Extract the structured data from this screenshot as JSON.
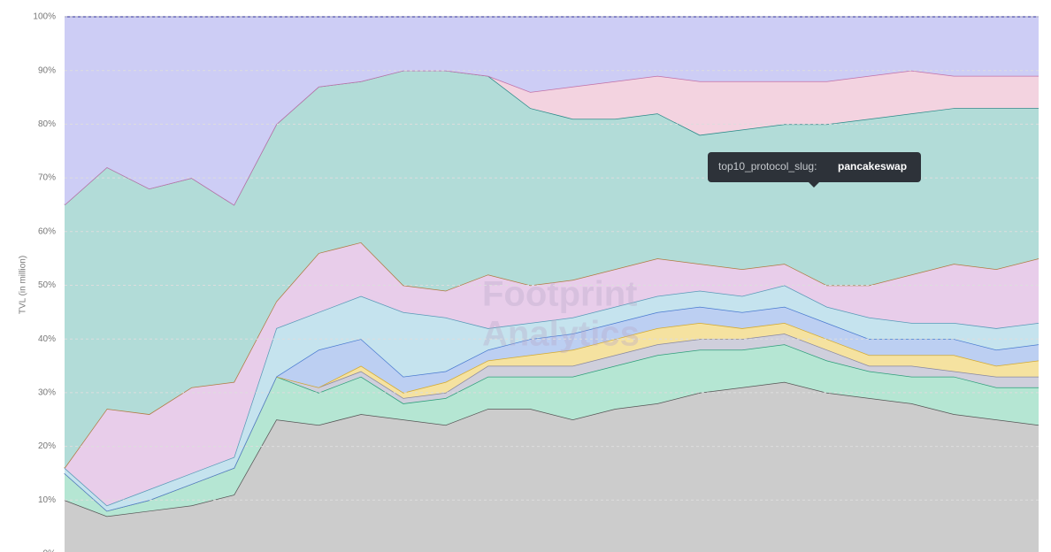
{
  "chart_data": {
    "type": "area",
    "stacked": true,
    "grid": true,
    "y_label": "TVL (in million)",
    "tooltip": {
      "key": "top10_protocol_slug:",
      "value": "pancakeswap"
    },
    "watermark": [
      "Footprint",
      "Analytics"
    ],
    "ylim": [
      0,
      100
    ],
    "yticks": [
      {
        "value": 0,
        "label": "0%"
      },
      {
        "value": 10,
        "label": "10%"
      },
      {
        "value": 20,
        "label": "20%"
      },
      {
        "value": 30,
        "label": "30%"
      },
      {
        "value": 40,
        "label": "40%"
      },
      {
        "value": 50,
        "label": "50%"
      },
      {
        "value": 60,
        "label": "60%"
      },
      {
        "value": 70,
        "label": "70%"
      },
      {
        "value": 80,
        "label": "80%"
      },
      {
        "value": 90,
        "label": "90%"
      },
      {
        "value": 100,
        "label": "100%"
      }
    ],
    "series": [
      {
        "color": "#cccccc",
        "line": "#555555",
        "values": [
          10,
          7,
          8,
          9,
          11,
          25,
          24,
          26,
          25,
          24,
          27,
          27,
          25,
          27,
          28,
          30,
          31,
          32,
          30,
          29,
          28,
          26,
          25,
          24
        ]
      },
      {
        "color": "#b5e6d3",
        "line": "#2e9e7a",
        "values": [
          5,
          1,
          2,
          4,
          5,
          8,
          6,
          7,
          3,
          5,
          6,
          6,
          8,
          8,
          9,
          8,
          7,
          7,
          6,
          5,
          5,
          7,
          6,
          7
        ]
      },
      {
        "color": "#cfcfdc",
        "line": "#8888a0",
        "values": [
          0,
          0,
          0,
          0,
          0,
          0,
          1,
          1,
          1,
          1,
          2,
          2,
          2,
          2,
          2,
          2,
          2,
          2,
          2,
          1,
          2,
          1,
          2,
          2
        ]
      },
      {
        "color": "#f5e2a0",
        "line": "#d4aa30",
        "values": [
          0,
          0,
          0,
          0,
          0,
          0,
          0,
          1,
          1,
          2,
          1,
          2,
          3,
          3,
          3,
          3,
          2,
          2,
          2,
          2,
          2,
          3,
          2,
          3
        ]
      },
      {
        "color": "#bccff2",
        "line": "#4a7bd0",
        "values": [
          0,
          0,
          0,
          0,
          0,
          0,
          7,
          5,
          3,
          2,
          2,
          3,
          3,
          3,
          3,
          3,
          3,
          3,
          3,
          3,
          3,
          3,
          3,
          3
        ]
      },
      {
        "color": "#c5e3ee",
        "line": "#5a9ab8",
        "values": [
          1,
          1,
          2,
          2,
          2,
          9,
          7,
          8,
          12,
          10,
          4,
          3,
          3,
          3,
          3,
          3,
          3,
          4,
          3,
          4,
          3,
          3,
          4,
          4
        ]
      },
      {
        "color": "#e8cdea",
        "line": "#b07a40",
        "values": [
          0,
          18,
          14,
          16,
          14,
          5,
          11,
          10,
          5,
          5,
          10,
          7,
          7,
          7,
          7,
          5,
          5,
          4,
          4,
          6,
          9,
          11,
          11,
          12
        ]
      },
      {
        "color": "#b2dcd8",
        "line": "#2a8a88",
        "values": [
          49,
          45,
          42,
          39,
          33,
          33,
          31,
          30,
          40,
          41,
          37,
          33,
          30,
          28,
          27,
          24,
          26,
          26,
          30,
          31,
          30,
          29,
          30,
          28
        ]
      },
      {
        "color": "#f3d3e0",
        "line": "#c070a8",
        "values": [
          0,
          0,
          0,
          0,
          0,
          0,
          0,
          0,
          0,
          0,
          0,
          3,
          6,
          7,
          7,
          10,
          9,
          8,
          8,
          8,
          8,
          6,
          6,
          6
        ]
      },
      {
        "color": "#cdcdf5",
        "line": "#6a6ab8",
        "values": [
          35,
          28,
          32,
          30,
          35,
          20,
          13,
          12,
          10,
          10,
          11,
          14,
          13,
          12,
          11,
          12,
          12,
          12,
          12,
          11,
          10,
          11,
          11,
          11
        ]
      }
    ]
  }
}
